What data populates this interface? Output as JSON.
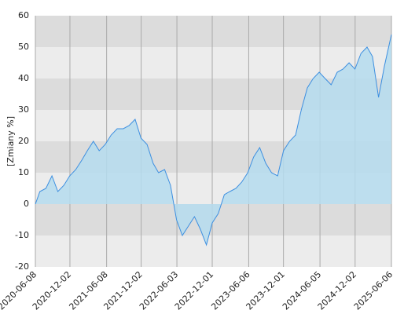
{
  "chart_data": {
    "type": "area",
    "y_label": "[Zmiany %]",
    "x": [
      "2020-06-08",
      "2020-07",
      "2020-08",
      "2020-09",
      "2020-10",
      "2020-11",
      "2020-12",
      "2021-01",
      "2021-02",
      "2021-03",
      "2021-04",
      "2021-05",
      "2021-06",
      "2021-07",
      "2021-08",
      "2021-09",
      "2021-10",
      "2021-11",
      "2021-12",
      "2022-01",
      "2022-02",
      "2022-03",
      "2022-04",
      "2022-05",
      "2022-06",
      "2022-07",
      "2022-08",
      "2022-09",
      "2022-10",
      "2022-11",
      "2022-12",
      "2023-01",
      "2023-02",
      "2023-03",
      "2023-04",
      "2023-05",
      "2023-06",
      "2023-07",
      "2023-08",
      "2023-09",
      "2023-10",
      "2023-11",
      "2023-12",
      "2024-01",
      "2024-02",
      "2024-03",
      "2024-04",
      "2024-05",
      "2024-06",
      "2024-07",
      "2024-08",
      "2024-09",
      "2024-10",
      "2024-11",
      "2024-12",
      "2025-01",
      "2025-02",
      "2025-03",
      "2025-04",
      "2025-05",
      "2025-06-06"
    ],
    "series": [
      {
        "name": "Zmiany",
        "color": "#3d8fe0",
        "fill": "#b5dcee",
        "values": [
          0,
          4,
          5,
          9,
          4,
          6,
          9,
          11,
          14,
          17,
          20,
          17,
          19,
          22,
          24,
          24,
          25,
          27,
          21,
          19,
          13,
          10,
          11,
          6,
          -5,
          -10,
          -7,
          -4,
          -8,
          -13,
          -6,
          -3,
          3,
          4,
          5,
          7,
          10,
          15,
          18,
          13,
          10,
          9,
          17,
          20,
          22,
          30,
          37,
          40,
          42,
          40,
          38,
          42,
          43,
          45,
          43,
          48,
          50,
          47,
          34,
          44,
          54
        ]
      }
    ],
    "xlim": [
      "2020-06-08",
      "2025-06-06"
    ],
    "xticks": [
      "2020-06-08",
      "2020-12-02",
      "2021-06-08",
      "2021-12-02",
      "2022-06-03",
      "2022-12-01",
      "2023-06-06",
      "2023-12-01",
      "2024-06-05",
      "2024-12-02",
      "2025-06-06"
    ],
    "ylim": [
      -20,
      60
    ],
    "yticks": [
      -20,
      -10,
      0,
      10,
      20,
      30,
      40,
      50,
      60
    ],
    "bands": [
      "#dcdcdc",
      "#ececec"
    ],
    "grid": true
  }
}
